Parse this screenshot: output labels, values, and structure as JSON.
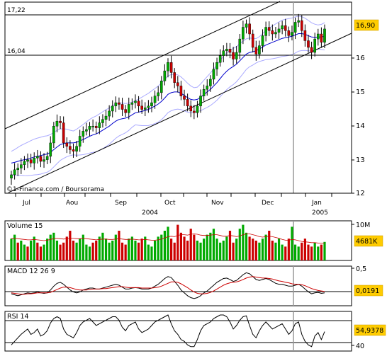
{
  "price_panel": {
    "level_high_label": "17,22",
    "level_low_label": "16,04",
    "level_high": 17.22,
    "level_low": 16.04,
    "last_price_label": "16,90",
    "last_price": 16.9,
    "y_ticks": [
      "12",
      "13",
      "14",
      "15",
      "16"
    ],
    "ylim": [
      12,
      17.7
    ],
    "copyright": "©1-Finance.com / Boursorama"
  },
  "time_axis": {
    "months": [
      "Jul",
      "Aou",
      "Sep",
      "Oct",
      "Nov",
      "Dec",
      "Jan"
    ],
    "years": [
      "2004",
      "2005"
    ]
  },
  "volume_panel": {
    "title": "Volume 15",
    "max_label": "10M",
    "last_label": "4681K"
  },
  "macd_panel": {
    "title": "MACD 12 26 9",
    "tick_label": "0,5",
    "last_label": "0,0191"
  },
  "rsi_panel": {
    "title": "RSI 14",
    "tick_label": "40",
    "last_label": "54,9378"
  },
  "colors": {
    "up_candle": "#00aa00",
    "down_candle": "#cc0000",
    "moving_average": "#0000cc",
    "bollinger_band": "#aaaaff",
    "macd_signal": "#cc0000",
    "badge_fill": "#ffcc00"
  },
  "chart_data": [
    {
      "type": "candlestick",
      "title": "",
      "ylim": [
        12,
        17.7
      ],
      "grid": false,
      "annotations": [
        "17,22",
        "16,04"
      ],
      "close": [
        12.55,
        12.7,
        12.75,
        12.85,
        12.95,
        13.0,
        12.9,
        13.05,
        13.1,
        12.95,
        13.0,
        13.1,
        13.5,
        14.0,
        14.15,
        14.1,
        13.5,
        13.4,
        13.3,
        13.25,
        13.4,
        13.7,
        13.85,
        13.9,
        14.0,
        14.0,
        13.95,
        14.1,
        14.2,
        14.3,
        14.45,
        14.6,
        14.7,
        14.65,
        14.5,
        14.4,
        14.65,
        14.7,
        14.75,
        14.6,
        14.5,
        14.55,
        14.6,
        14.7,
        14.9,
        15.0,
        15.35,
        15.65,
        15.9,
        15.6,
        15.3,
        15.2,
        14.9,
        14.8,
        14.6,
        14.45,
        14.4,
        14.6,
        14.9,
        15.1,
        15.2,
        15.4,
        15.7,
        15.9,
        16.1,
        16.25,
        16.3,
        16.2,
        16.0,
        16.2,
        16.6,
        16.95,
        17.05,
        16.75,
        16.35,
        16.15,
        16.4,
        16.7,
        16.95,
        16.85,
        16.75,
        16.8,
        16.9,
        17.0,
        16.85,
        16.7,
        16.8,
        17.1,
        17.15,
        16.85,
        16.55,
        16.35,
        16.2,
        16.6,
        16.75,
        16.5,
        16.9
      ],
      "last": 16.9,
      "series": [
        {
          "name": "",
          "note": "moving average",
          "values": [
            12.9,
            12.92,
            12.95,
            12.98,
            13.0,
            13.02,
            13.05,
            13.08,
            13.1,
            13.12,
            13.15,
            13.17,
            13.22,
            13.3,
            13.38,
            13.45,
            13.48,
            13.5,
            13.5,
            13.5,
            13.52,
            13.56,
            13.6,
            13.65,
            13.7,
            13.74,
            13.77,
            13.82,
            13.88,
            13.94,
            14.0,
            14.08,
            14.15,
            14.2,
            14.22,
            14.24,
            14.28,
            14.34,
            14.4,
            14.42,
            14.44,
            14.47,
            14.5,
            14.55,
            14.6,
            14.66,
            14.74,
            14.84,
            14.95,
            15.0,
            15.02,
            15.02,
            14.98,
            14.92,
            14.85,
            14.8,
            14.78,
            14.8,
            14.86,
            14.94,
            15.02,
            15.1,
            15.2,
            15.3,
            15.42,
            15.54,
            15.64,
            15.72,
            15.78,
            15.85,
            15.95,
            16.05,
            16.15,
            16.2,
            16.22,
            16.25,
            16.3,
            16.36,
            16.42,
            16.46,
            16.5,
            16.54,
            16.58,
            16.62,
            16.64,
            16.66,
            16.68,
            16.72,
            16.76,
            16.76,
            16.74,
            16.7,
            16.66,
            16.65,
            16.66,
            16.66,
            16.68
          ]
        },
        {
          "name": "",
          "note": "upper trend line",
          "values": [
            14.1,
            17.95
          ]
        },
        {
          "name": "",
          "note": "lower trend line",
          "values": [
            12.05,
            16.8
          ]
        }
      ]
    },
    {
      "type": "bar",
      "title": "Volume 15",
      "unit": "M",
      "ylim": [
        0,
        10
      ],
      "last": 4.681,
      "values": [
        5.5,
        6.5,
        4.5,
        5.0,
        4.0,
        3.5,
        5.0,
        6.0,
        4.5,
        3.5,
        4.0,
        5.5,
        6.5,
        7.0,
        5.0,
        4.0,
        4.5,
        6.0,
        7.5,
        5.0,
        4.5,
        5.5,
        6.5,
        4.0,
        3.5,
        4.5,
        5.0,
        6.0,
        7.0,
        5.5,
        4.5,
        5.0,
        6.5,
        7.5,
        4.5,
        4.0,
        5.5,
        6.0,
        5.0,
        4.5,
        5.5,
        6.0,
        4.0,
        3.5,
        5.0,
        6.0,
        6.5,
        7.5,
        8.5,
        5.5,
        4.5,
        9.0,
        7.0,
        6.0,
        5.0,
        8.0,
        6.5,
        5.0,
        4.5,
        5.5,
        6.5,
        7.0,
        8.0,
        5.5,
        4.5,
        5.0,
        6.0,
        7.5,
        4.5,
        5.5,
        8.0,
        9.0,
        7.0,
        6.0,
        5.5,
        5.0,
        4.5,
        5.5,
        6.5,
        7.5,
        5.0,
        4.5,
        5.5,
        4.0,
        3.5,
        5.5,
        8.5,
        4.0,
        3.5,
        4.5,
        5.5,
        4.0,
        3.5,
        4.5,
        3.5,
        4.0,
        4.68
      ],
      "direction": [
        1,
        1,
        0,
        1,
        1,
        0,
        1,
        1,
        0,
        0,
        1,
        1,
        1,
        1,
        1,
        0,
        0,
        0,
        0,
        0,
        1,
        1,
        1,
        1,
        1,
        0,
        0,
        1,
        1,
        1,
        1,
        1,
        1,
        0,
        0,
        0,
        1,
        1,
        1,
        0,
        0,
        1,
        1,
        1,
        1,
        1,
        1,
        1,
        1,
        0,
        0,
        0,
        0,
        0,
        0,
        0,
        0,
        1,
        1,
        1,
        1,
        1,
        1,
        1,
        1,
        1,
        1,
        0,
        0,
        1,
        1,
        1,
        1,
        0,
        0,
        0,
        1,
        1,
        1,
        0,
        0,
        1,
        1,
        1,
        0,
        0,
        1,
        1,
        1,
        0,
        0,
        0,
        0,
        1,
        1,
        0,
        1
      ],
      "series": [
        {
          "name": "",
          "note": "volume moving average",
          "values": [
            5.5,
            5.6,
            5.5,
            5.4,
            5.3,
            5.2,
            5.2,
            5.3,
            5.2,
            5.1,
            5.0,
            5.1,
            5.3,
            5.5,
            5.6,
            5.5,
            5.4,
            5.5,
            5.6,
            5.6,
            5.5,
            5.5,
            5.6,
            5.5,
            5.4,
            5.3,
            5.2,
            5.3,
            5.4,
            5.4,
            5.3,
            5.3,
            5.4,
            5.5,
            5.4,
            5.3,
            5.3,
            5.4,
            5.3,
            5.2,
            5.2,
            5.3,
            5.2,
            5.1,
            5.1,
            5.2,
            5.4,
            5.7,
            6.0,
            6.1,
            6.0,
            6.3,
            6.5,
            6.5,
            6.4,
            6.6,
            6.7,
            6.6,
            6.4,
            6.3,
            6.3,
            6.4,
            6.5,
            6.5,
            6.3,
            6.1,
            6.1,
            6.3,
            6.2,
            6.0,
            6.2,
            6.5,
            6.7,
            6.7,
            6.5,
            6.3,
            6.0,
            5.9,
            6.0,
            6.1,
            6.0,
            5.8,
            5.6,
            5.3,
            5.1,
            5.1,
            5.3,
            5.2,
            5.0,
            4.8,
            4.7,
            4.6,
            4.5,
            4.5,
            4.4,
            4.4,
            4.4
          ]
        }
      ]
    },
    {
      "type": "line",
      "title": "MACD 12 26 9",
      "ylim": [
        -0.25,
        0.58
      ],
      "last": 0.0191,
      "series": [
        {
          "name": "",
          "note": "MACD",
          "values": [
            0.0,
            -0.02,
            -0.04,
            -0.02,
            0.0,
            0.02,
            0.01,
            0.02,
            0.04,
            0.02,
            0.01,
            0.02,
            0.08,
            0.16,
            0.22,
            0.24,
            0.2,
            0.14,
            0.08,
            0.04,
            0.02,
            0.04,
            0.08,
            0.1,
            0.12,
            0.12,
            0.1,
            0.1,
            0.12,
            0.14,
            0.16,
            0.18,
            0.2,
            0.18,
            0.14,
            0.1,
            0.1,
            0.12,
            0.13,
            0.12,
            0.1,
            0.1,
            0.1,
            0.12,
            0.16,
            0.2,
            0.26,
            0.32,
            0.36,
            0.34,
            0.26,
            0.18,
            0.08,
            0.02,
            -0.04,
            -0.08,
            -0.1,
            -0.08,
            -0.04,
            0.02,
            0.06,
            0.12,
            0.18,
            0.24,
            0.28,
            0.32,
            0.33,
            0.3,
            0.26,
            0.28,
            0.34,
            0.4,
            0.44,
            0.42,
            0.36,
            0.3,
            0.28,
            0.3,
            0.32,
            0.3,
            0.26,
            0.22,
            0.2,
            0.2,
            0.18,
            0.16,
            0.16,
            0.18,
            0.2,
            0.16,
            0.1,
            0.04,
            0.0,
            0.02,
            0.03,
            0.01,
            0.02
          ]
        },
        {
          "name": "",
          "note": "signal line",
          "values": [
            0.02,
            0.01,
            0.0,
            -0.01,
            -0.01,
            0.0,
            0.0,
            0.01,
            0.02,
            0.02,
            0.02,
            0.02,
            0.03,
            0.06,
            0.09,
            0.12,
            0.14,
            0.14,
            0.13,
            0.11,
            0.09,
            0.08,
            0.08,
            0.08,
            0.09,
            0.1,
            0.1,
            0.1,
            0.11,
            0.11,
            0.12,
            0.13,
            0.14,
            0.15,
            0.15,
            0.14,
            0.13,
            0.13,
            0.13,
            0.13,
            0.12,
            0.12,
            0.12,
            0.12,
            0.13,
            0.14,
            0.16,
            0.19,
            0.22,
            0.25,
            0.25,
            0.24,
            0.21,
            0.17,
            0.13,
            0.08,
            0.04,
            0.01,
            0.0,
            0.0,
            0.01,
            0.03,
            0.06,
            0.1,
            0.14,
            0.18,
            0.21,
            0.23,
            0.24,
            0.25,
            0.27,
            0.3,
            0.33,
            0.35,
            0.36,
            0.35,
            0.34,
            0.33,
            0.33,
            0.32,
            0.31,
            0.29,
            0.27,
            0.26,
            0.24,
            0.23,
            0.21,
            0.2,
            0.2,
            0.19,
            0.17,
            0.14,
            0.11,
            0.09,
            0.07,
            0.06,
            0.05
          ]
        }
      ]
    },
    {
      "type": "line",
      "title": "RSI 14",
      "ylim": [
        33,
        78
      ],
      "last": 54.9378,
      "series": [
        {
          "name": "",
          "note": "RSI",
          "values": [
            40,
            44,
            48,
            52,
            55,
            58,
            52,
            54,
            58,
            50,
            52,
            56,
            65,
            70,
            72,
            70,
            58,
            52,
            50,
            48,
            54,
            62,
            66,
            68,
            70,
            66,
            62,
            64,
            66,
            68,
            70,
            72,
            72,
            68,
            60,
            56,
            62,
            64,
            66,
            58,
            54,
            56,
            58,
            62,
            66,
            68,
            70,
            72,
            74,
            64,
            56,
            52,
            46,
            44,
            40,
            38,
            38,
            46,
            56,
            62,
            64,
            66,
            70,
            72,
            74,
            74,
            72,
            66,
            58,
            62,
            68,
            72,
            73,
            62,
            52,
            48,
            56,
            62,
            66,
            62,
            58,
            60,
            62,
            64,
            58,
            52,
            56,
            64,
            66,
            52,
            44,
            40,
            38,
            50,
            54,
            46,
            55
          ]
        }
      ]
    }
  ]
}
